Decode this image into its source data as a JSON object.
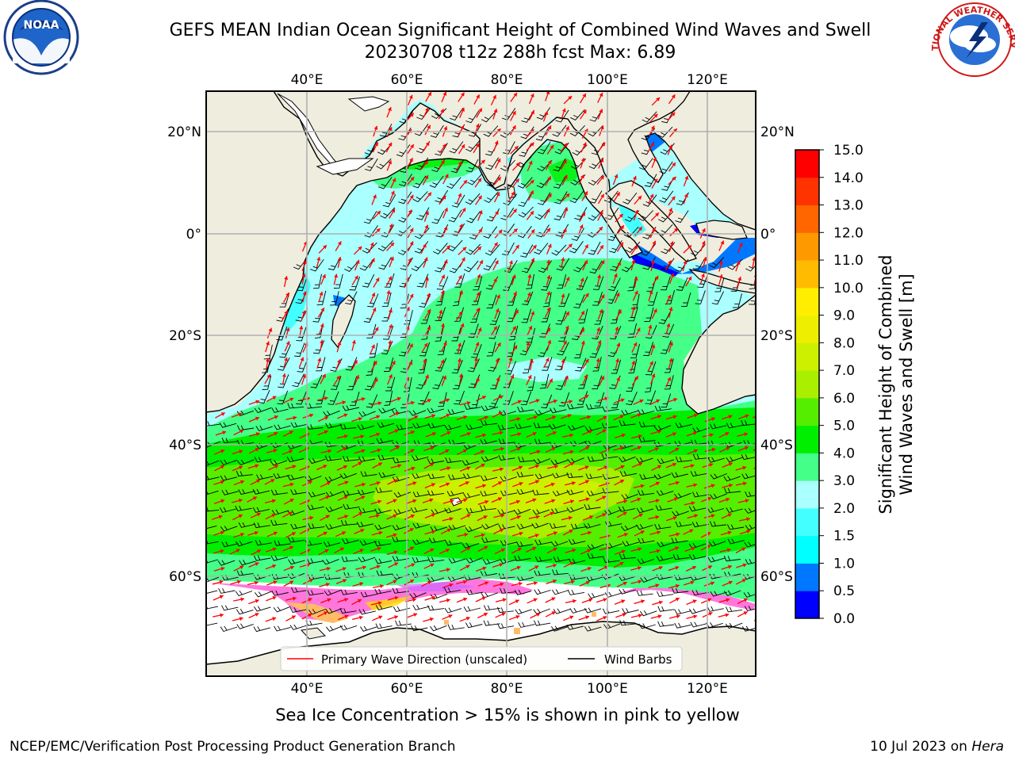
{
  "title": {
    "line1": "GEFS MEAN Indian Ocean Significant Height of Combined Wind Waves and Swell",
    "line2": "20230708 t12z 288h fcst   Max: 6.89"
  },
  "map": {
    "lon_ticks": [
      "40°E",
      "60°E",
      "80°E",
      "100°E",
      "120°E"
    ],
    "lat_ticks": [
      "20°N",
      "0°",
      "20°S",
      "40°S",
      "60°S"
    ],
    "legend": {
      "wave_direction": "Primary Wave Direction (unscaled)",
      "wind_barbs": "Wind Barbs"
    },
    "colors": {
      "land": "#efedde",
      "ice_free": "#ffffff",
      "wave_arrow": "#ff0000",
      "barb": "#000000"
    }
  },
  "colorbar": {
    "label_line1": "Significant Height of Combined",
    "label_line2": "Wind Waves and Swell [m]",
    "levels": [
      "0.0",
      "0.5",
      "1.0",
      "1.5",
      "2.0",
      "3.0",
      "4.0",
      "5.0",
      "6.0",
      "7.0",
      "8.0",
      "9.0",
      "10.0",
      "11.0",
      "12.0",
      "13.0",
      "14.0",
      "15.0"
    ],
    "colors": [
      "#0000ff",
      "#0077ff",
      "#00ffff",
      "#44ffff",
      "#aaffff",
      "#44ff88",
      "#00ee00",
      "#55ee00",
      "#aaee00",
      "#ccf000",
      "#eeee00",
      "#ffee00",
      "#ffbb00",
      "#ff9900",
      "#ff6600",
      "#ff3300",
      "#ff0000"
    ]
  },
  "footer": {
    "ice_note": "Sea Ice Concentration > 15% is shown in pink to yellow",
    "credit": "NCEP/EMC/Verification Post Processing Product Generation Branch",
    "date": "10 Jul 2023 on ",
    "machine": "Hera"
  },
  "logos": {
    "noaa": "NOAA",
    "nws": "NATIONAL WEATHER SERVICE"
  }
}
